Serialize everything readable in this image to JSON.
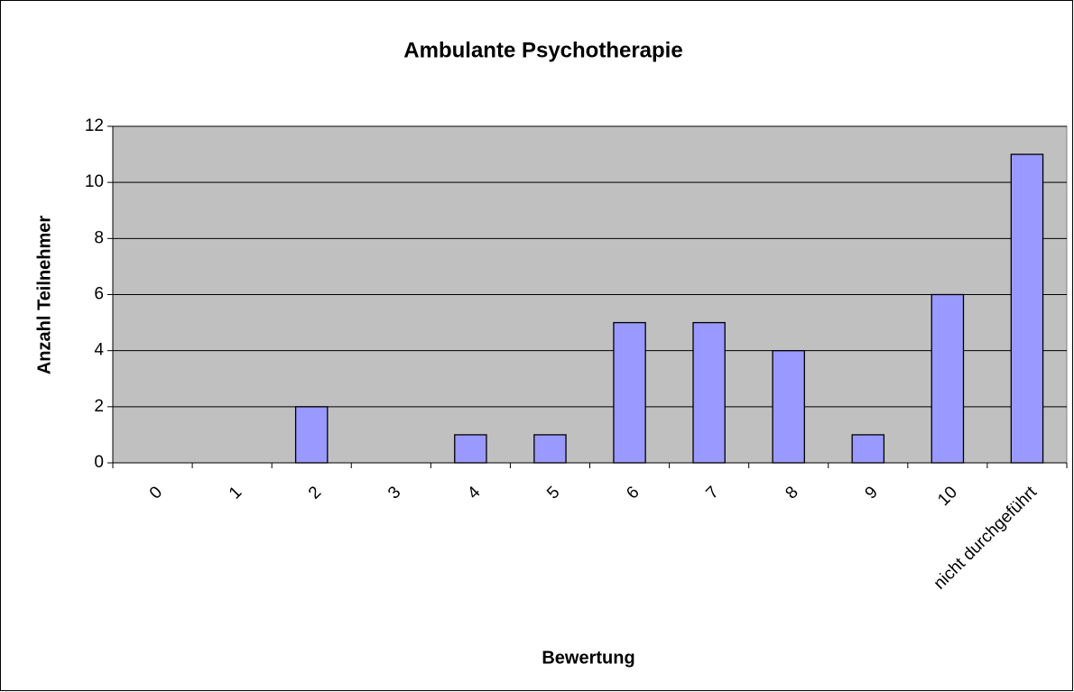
{
  "chart_data": {
    "type": "bar",
    "title": "Ambulante Psychotherapie",
    "x_label": "Bewertung",
    "y_label": "Anzahl Teilnehmer",
    "categories": [
      "0",
      "1",
      "2",
      "3",
      "4",
      "5",
      "6",
      "7",
      "8",
      "9",
      "10",
      "nicht durchgeführt"
    ],
    "values": [
      0,
      0,
      2,
      0,
      1,
      1,
      5,
      5,
      4,
      1,
      6,
      11
    ],
    "color": "#9999ff",
    "plot_background": "#c0c0c0",
    "ylim": [
      0,
      12
    ],
    "yticks": [
      0,
      2,
      4,
      6,
      8,
      10,
      12
    ],
    "grid": true
  }
}
